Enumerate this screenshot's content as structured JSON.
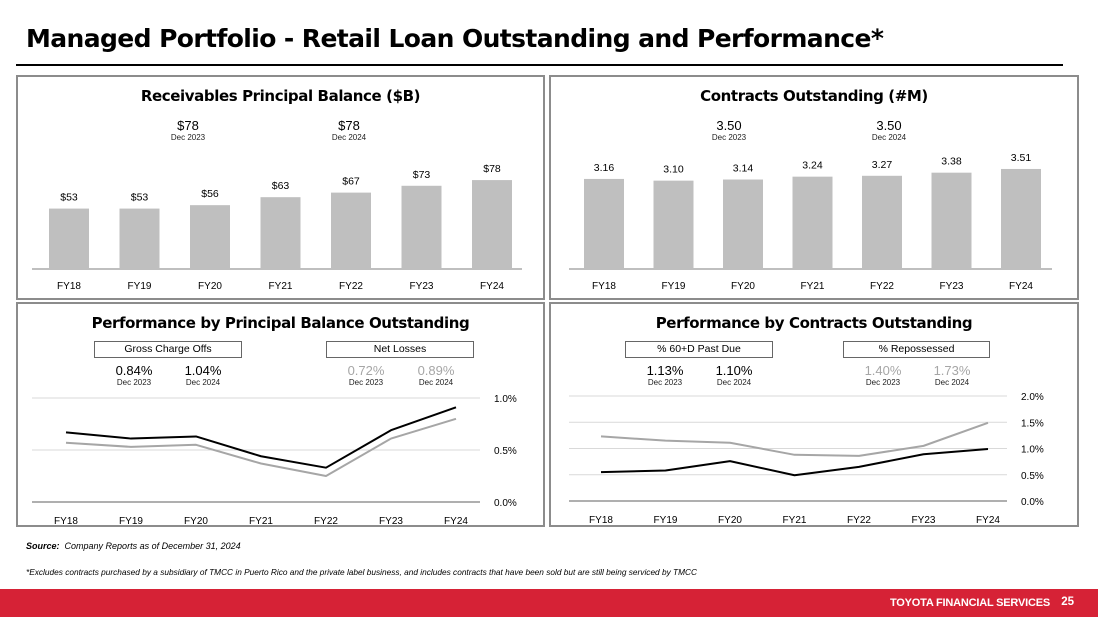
{
  "page": {
    "title": "Managed Portfolio - Retail Loan Outstanding and Performance*",
    "source_label": "Source:",
    "source_text": "Company Reports as of December 31, 2024",
    "footnote": "*Excludes contracts purchased by a subsidiary of TMCC in Puerto Rico and the private label business, and includes contracts that have been sold but are still being serviced by TMCC",
    "brand": "TOYOTA FINANCIAL SERVICES",
    "page_number": "25",
    "brand_color": "#d62236"
  },
  "panels": {
    "receivables": {
      "stats": [
        {
          "value": "$78",
          "date": "Dec 2023"
        },
        {
          "value": "$78",
          "date": "Dec 2024"
        }
      ]
    },
    "contracts": {
      "stats": [
        {
          "value": "3.50",
          "date": "Dec 2023"
        },
        {
          "value": "3.50",
          "date": "Dec 2024"
        }
      ]
    },
    "performance_balance": {
      "legend": [
        "Gross Charge Offs",
        "Net Losses"
      ],
      "stats": [
        {
          "value": "0.84%",
          "date": "Dec 2023"
        },
        {
          "value": "1.04%",
          "date": "Dec 2024"
        },
        {
          "value": "0.72%",
          "date": "Dec 2023"
        },
        {
          "value": "0.89%",
          "date": "Dec 2024"
        }
      ]
    },
    "performance_contracts": {
      "legend": [
        "% 60+D Past Due",
        "% Repossessed"
      ],
      "stats": [
        {
          "value": "1.13%",
          "date": "Dec 2023"
        },
        {
          "value": "1.10%",
          "date": "Dec 2024"
        },
        {
          "value": "1.40%",
          "date": "Dec 2023"
        },
        {
          "value": "1.73%",
          "date": "Dec 2024"
        }
      ]
    }
  },
  "chart_data": [
    {
      "type": "bar",
      "title": "Receivables Principal Balance ($B)",
      "categories": [
        "FY18",
        "FY19",
        "FY20",
        "FY21",
        "FY22",
        "FY23",
        "FY24"
      ],
      "values": [
        53,
        53,
        56,
        63,
        67,
        73,
        78
      ],
      "labels": [
        "$53",
        "$53",
        "$56",
        "$63",
        "$67",
        "$73",
        "$78"
      ],
      "ylim": [
        0,
        90
      ],
      "bar_color": "#bfbfbf",
      "grid": false
    },
    {
      "type": "bar",
      "title": "Contracts Outstanding (#M)",
      "categories": [
        "FY18",
        "FY19",
        "FY20",
        "FY21",
        "FY22",
        "FY23",
        "FY24"
      ],
      "values": [
        3.16,
        3.1,
        3.14,
        3.24,
        3.27,
        3.38,
        3.51
      ],
      "labels": [
        "3.16",
        "3.10",
        "3.14",
        "3.24",
        "3.27",
        "3.38",
        "3.51"
      ],
      "ylim": [
        0,
        4
      ],
      "bar_color": "#bfbfbf",
      "grid": false
    },
    {
      "type": "line",
      "title": "Performance by  Principal Balance Outstanding",
      "categories": [
        "FY18",
        "FY19",
        "FY20",
        "FY21",
        "FY22",
        "FY23",
        "FY24"
      ],
      "series": [
        {
          "name": "Gross Charge Offs",
          "color": "#000000",
          "values": [
            0.67,
            0.61,
            0.63,
            0.44,
            0.33,
            0.69,
            0.91
          ]
        },
        {
          "name": "Net Losses",
          "color": "#a6a6a6",
          "values": [
            0.57,
            0.53,
            0.55,
            0.37,
            0.25,
            0.61,
            0.8
          ]
        }
      ],
      "ylim": [
        0,
        1.0
      ],
      "yticks": [
        "0.0%",
        "0.5%",
        "1.0%"
      ],
      "ytick_values": [
        0,
        0.5,
        1.0
      ],
      "grid": true,
      "axis_side": "right"
    },
    {
      "type": "line",
      "title": "Performance by  Contracts Outstanding",
      "categories": [
        "FY18",
        "FY19",
        "FY20",
        "FY21",
        "FY22",
        "FY23",
        "FY24"
      ],
      "series": [
        {
          "name": "% 60+D Past Due",
          "color": "#000000",
          "values": [
            0.55,
            0.58,
            0.76,
            0.49,
            0.65,
            0.89,
            0.99
          ]
        },
        {
          "name": "% Repossessed",
          "color": "#a6a6a6",
          "values": [
            1.23,
            1.15,
            1.11,
            0.88,
            0.86,
            1.05,
            1.49
          ]
        }
      ],
      "ylim": [
        0,
        2.0
      ],
      "yticks": [
        "0.0%",
        "0.5%",
        "1.0%",
        "1.5%",
        "2.0%"
      ],
      "ytick_values": [
        0,
        0.5,
        1.0,
        1.5,
        2.0
      ],
      "grid": true,
      "axis_side": "right"
    }
  ]
}
